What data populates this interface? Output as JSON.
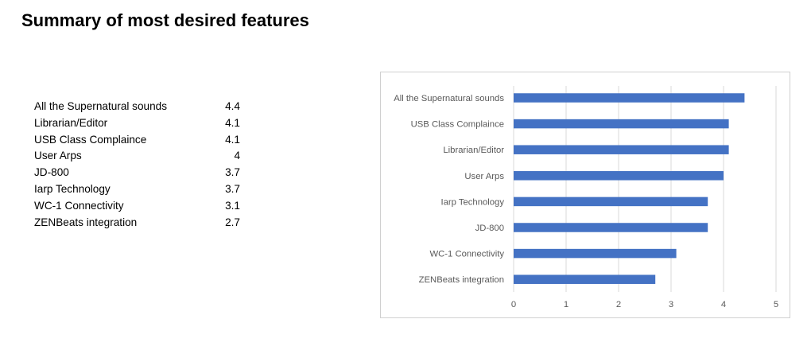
{
  "page": {
    "title": "Summary of most desired features"
  },
  "table": {
    "rows": [
      {
        "label": "All the Supernatural sounds",
        "value": "4.4"
      },
      {
        "label": "Librarian/Editor",
        "value": "4.1"
      },
      {
        "label": "USB Class Complaince",
        "value": "4.1"
      },
      {
        "label": "User Arps",
        "value": "4"
      },
      {
        "label": "JD-800",
        "value": "3.7"
      },
      {
        "label": "Iarp Technology",
        "value": "3.7"
      },
      {
        "label": "WC-1 Connectivity",
        "value": "3.1"
      },
      {
        "label": "ZENBeats integration",
        "value": "2.7"
      }
    ]
  },
  "chart_data": {
    "type": "bar",
    "orientation": "horizontal",
    "categories": [
      "All the Supernatural sounds",
      "USB Class Complaince",
      "Librarian/Editor",
      "User Arps",
      "Iarp Technology",
      "JD-800",
      "WC-1 Connectivity",
      "ZENBeats integration"
    ],
    "values": [
      4.4,
      4.1,
      4.1,
      4,
      3.7,
      3.7,
      3.1,
      2.7
    ],
    "xlim": [
      0,
      5
    ],
    "xticks": [
      0,
      1,
      2,
      3,
      4,
      5
    ],
    "bar_color": "#4472c4",
    "grid": true,
    "legend": false,
    "title": "",
    "xlabel": "",
    "ylabel": ""
  }
}
